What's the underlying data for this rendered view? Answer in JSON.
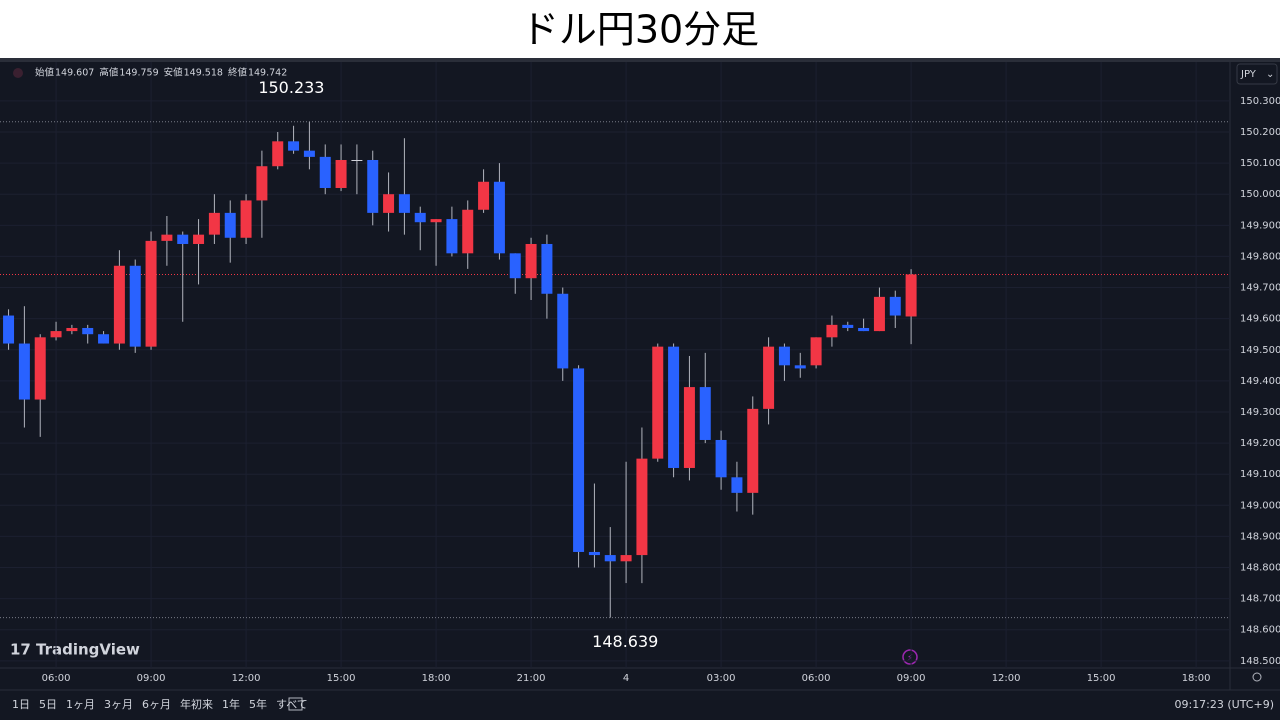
{
  "header": {
    "title": "ドル円30分足"
  },
  "chart_data": {
    "type": "candlestick",
    "brand": "TradingView",
    "currency": "JPY",
    "ohlc_legend": [
      {
        "label": "始値",
        "value": 149.607
      },
      {
        "label": "高値",
        "value": 149.759
      },
      {
        "label": "安値",
        "value": 149.518
      },
      {
        "label": "終値",
        "value": 149.742
      }
    ],
    "up_color": "#f23645",
    "down_color": "#2962ff",
    "x": [
      4.5,
      5,
      5.5,
      6,
      6.5,
      7,
      7.5,
      8,
      8.5,
      9,
      9.5,
      10,
      10.5,
      11,
      11.5,
      12,
      12.5,
      13,
      13.5,
      14,
      14.5,
      15,
      15.5,
      16,
      16.5,
      17,
      17.5,
      18,
      18.5,
      19,
      19.5,
      20,
      20.5,
      21,
      21.5,
      22,
      22.5,
      23,
      23.5,
      24,
      24.5,
      25,
      25.5,
      26,
      26.5,
      27,
      27.5,
      28,
      28.5,
      29,
      29.5,
      30,
      30.5,
      31,
      31.5,
      32,
      32.5,
      33
    ],
    "open": [
      149.61,
      149.52,
      149.34,
      149.54,
      149.56,
      149.57,
      149.55,
      149.52,
      149.77,
      149.51,
      149.85,
      149.87,
      149.84,
      149.87,
      149.94,
      149.86,
      149.98,
      150.09,
      150.17,
      150.14,
      150.12,
      150.02,
      150.11,
      150.11,
      149.94,
      150.0,
      149.94,
      149.91,
      149.92,
      149.81,
      149.95,
      150.04,
      149.81,
      149.73,
      149.84,
      149.68,
      149.44,
      148.85,
      148.84,
      148.82,
      148.84,
      149.15,
      149.51,
      149.12,
      149.38,
      149.21,
      149.09,
      149.04,
      149.31,
      149.51,
      149.45,
      149.45,
      149.54,
      149.58,
      149.57,
      149.56,
      149.67,
      149.607
    ],
    "high": [
      149.63,
      149.64,
      149.55,
      149.59,
      149.58,
      149.58,
      149.56,
      149.82,
      149.79,
      149.88,
      149.93,
      149.88,
      149.92,
      150.0,
      149.98,
      150.0,
      150.14,
      150.2,
      150.22,
      150.233,
      150.16,
      150.16,
      150.16,
      150.14,
      150.07,
      150.18,
      149.96,
      149.92,
      149.96,
      149.98,
      150.08,
      150.1,
      149.81,
      149.86,
      149.87,
      149.7,
      149.45,
      149.07,
      148.93,
      149.14,
      149.25,
      149.52,
      149.52,
      149.48,
      149.49,
      149.24,
      149.14,
      149.35,
      149.54,
      149.52,
      149.49,
      149.54,
      149.61,
      149.59,
      149.6,
      149.7,
      149.69,
      149.759
    ],
    "low": [
      149.5,
      149.25,
      149.22,
      149.53,
      149.55,
      149.52,
      149.52,
      149.5,
      149.49,
      149.5,
      149.77,
      149.59,
      149.71,
      149.84,
      149.78,
      149.84,
      149.86,
      150.08,
      150.13,
      150.08,
      150.0,
      150.01,
      150.0,
      149.9,
      149.88,
      149.87,
      149.82,
      149.77,
      149.8,
      149.76,
      149.94,
      149.79,
      149.68,
      149.66,
      149.6,
      149.4,
      148.8,
      148.8,
      148.639,
      148.75,
      148.75,
      149.14,
      149.09,
      149.08,
      149.2,
      149.05,
      148.98,
      148.97,
      149.26,
      149.4,
      149.41,
      149.44,
      149.51,
      149.56,
      149.56,
      149.56,
      149.57,
      149.518
    ],
    "close": [
      149.52,
      149.34,
      149.54,
      149.56,
      149.57,
      149.55,
      149.52,
      149.77,
      149.51,
      149.85,
      149.87,
      149.84,
      149.87,
      149.94,
      149.86,
      149.98,
      150.09,
      150.17,
      150.14,
      150.12,
      150.02,
      150.11,
      150.11,
      149.94,
      150.0,
      149.94,
      149.91,
      149.92,
      149.81,
      149.95,
      150.04,
      149.81,
      149.73,
      149.84,
      149.68,
      149.44,
      148.85,
      148.84,
      148.82,
      148.84,
      149.15,
      149.51,
      149.12,
      149.38,
      149.21,
      149.09,
      149.04,
      149.31,
      149.51,
      149.45,
      149.44,
      149.54,
      149.58,
      149.57,
      149.56,
      149.67,
      149.61,
      149.742
    ],
    "high_marker": 150.233,
    "low_marker": 148.639,
    "xlim": [
      4.23,
      43.07
    ],
    "xticks": [
      {
        "value": 6,
        "label": "06:00"
      },
      {
        "value": 9,
        "label": "09:00"
      },
      {
        "value": 12,
        "label": "12:00"
      },
      {
        "value": 15,
        "label": "15:00"
      },
      {
        "value": 18,
        "label": "18:00"
      },
      {
        "value": 21,
        "label": "21:00"
      },
      {
        "value": 24,
        "label": "4"
      },
      {
        "value": 27,
        "label": "03:00"
      },
      {
        "value": 30,
        "label": "06:00"
      },
      {
        "value": 33,
        "label": "09:00"
      },
      {
        "value": 36,
        "label": "12:00"
      },
      {
        "value": 39,
        "label": "15:00"
      },
      {
        "value": 42,
        "label": "18:00"
      }
    ],
    "ylim": [
      148.477,
      150.425
    ],
    "yticks": [
      {
        "value": 150.3,
        "label": "150.300"
      },
      {
        "value": 150.2,
        "label": "150.200"
      },
      {
        "value": 150.1,
        "label": "150.100"
      },
      {
        "value": 150.0,
        "label": "150.000"
      },
      {
        "value": 149.9,
        "label": "149.900"
      },
      {
        "value": 149.8,
        "label": "149.800"
      },
      {
        "value": 149.7,
        "label": "149.700"
      },
      {
        "value": 149.6,
        "label": "149.600"
      },
      {
        "value": 149.5,
        "label": "149.500"
      },
      {
        "value": 149.4,
        "label": "149.400"
      },
      {
        "value": 149.3,
        "label": "149.300"
      },
      {
        "value": 149.2,
        "label": "149.200"
      },
      {
        "value": 149.1,
        "label": "149.100"
      },
      {
        "value": 149.0,
        "label": "149.000"
      },
      {
        "value": 148.9,
        "label": "148.900"
      },
      {
        "value": 148.8,
        "label": "148.800"
      },
      {
        "value": 148.7,
        "label": "148.700"
      },
      {
        "value": 148.6,
        "label": "148.600"
      },
      {
        "value": 148.5,
        "label": "148.500"
      }
    ],
    "grid": true
  },
  "toolbar": {
    "ranges": [
      "1日",
      "5日",
      "1ヶ月",
      "3ヶ月",
      "6ヶ月",
      "年初来",
      "1年",
      "5年",
      "すべて"
    ],
    "clock": "09:17:23 (UTC+9)"
  }
}
